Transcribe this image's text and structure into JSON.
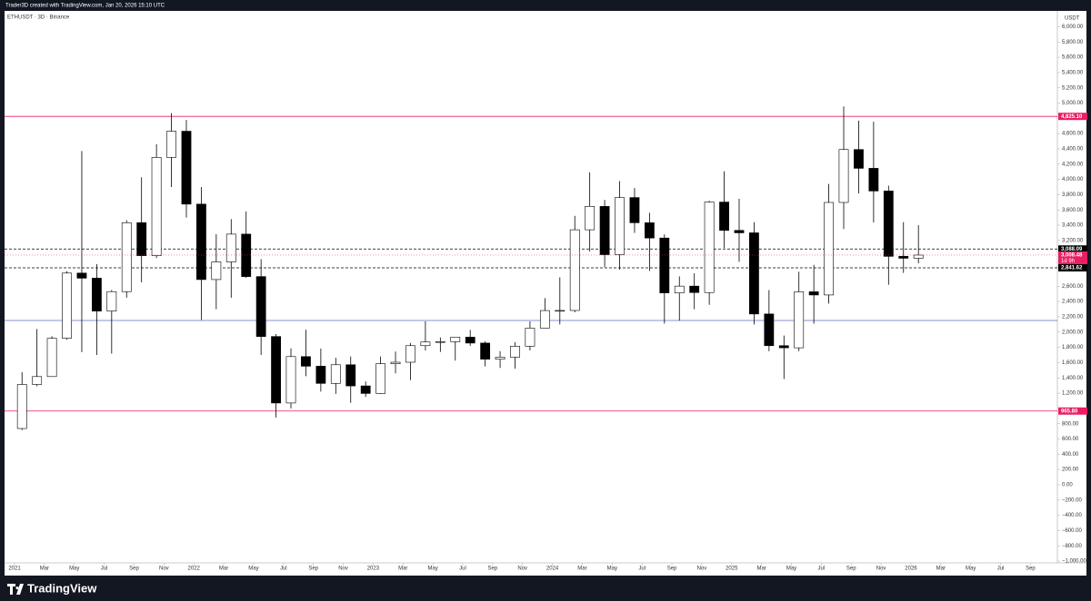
{
  "header": "Trader3D created with TradingView.com, Jan 20, 2026 15:10 UTC",
  "brand": "TradingView",
  "chart_data": {
    "type": "candlestick",
    "title": "ETHUSDT · 3D · Binance",
    "currency": "USDT",
    "up_color": "#ffffff",
    "down_color": "#000000",
    "xlim": [
      -0.67,
      69.8
    ],
    "ylim": [
      -1023,
      6207
    ],
    "xticks": [
      {
        "value": 0,
        "label": "2021"
      },
      {
        "value": 2,
        "label": "Mar"
      },
      {
        "value": 4,
        "label": "May"
      },
      {
        "value": 6,
        "label": "Jul"
      },
      {
        "value": 8,
        "label": "Sep"
      },
      {
        "value": 10,
        "label": "Nov"
      },
      {
        "value": 12,
        "label": "2022"
      },
      {
        "value": 14,
        "label": "Mar"
      },
      {
        "value": 16,
        "label": "May"
      },
      {
        "value": 18,
        "label": "Jul"
      },
      {
        "value": 20,
        "label": "Sep"
      },
      {
        "value": 22,
        "label": "Nov"
      },
      {
        "value": 24,
        "label": "2023"
      },
      {
        "value": 26,
        "label": "Mar"
      },
      {
        "value": 28,
        "label": "May"
      },
      {
        "value": 30,
        "label": "Jul"
      },
      {
        "value": 32,
        "label": "Sep"
      },
      {
        "value": 34,
        "label": "Nov"
      },
      {
        "value": 36,
        "label": "2024"
      },
      {
        "value": 38,
        "label": "Mar"
      },
      {
        "value": 40,
        "label": "May"
      },
      {
        "value": 42,
        "label": "Jul"
      },
      {
        "value": 44,
        "label": "Sep"
      },
      {
        "value": 46,
        "label": "Nov"
      },
      {
        "value": 48,
        "label": "2025"
      },
      {
        "value": 50,
        "label": "Mar"
      },
      {
        "value": 52,
        "label": "May"
      },
      {
        "value": 54,
        "label": "Jul"
      },
      {
        "value": 56,
        "label": "Sep"
      },
      {
        "value": 58,
        "label": "Nov"
      },
      {
        "value": 60,
        "label": "2026"
      },
      {
        "value": 62,
        "label": "Mar"
      },
      {
        "value": 64,
        "label": "May"
      },
      {
        "value": 66,
        "label": "Jul"
      },
      {
        "value": 68,
        "label": "Sep"
      }
    ],
    "yticks": [
      {
        "value": 6000,
        "label": "6,000.00"
      },
      {
        "value": 5800,
        "label": "5,800.00"
      },
      {
        "value": 5600,
        "label": "5,600.00"
      },
      {
        "value": 5400,
        "label": "5,400.00"
      },
      {
        "value": 5200,
        "label": "5,200.00"
      },
      {
        "value": 5000,
        "label": "5,000.00"
      },
      {
        "value": 4600,
        "label": "4,600.00"
      },
      {
        "value": 4400,
        "label": "4,400.00"
      },
      {
        "value": 4200,
        "label": "4,200.00"
      },
      {
        "value": 4000,
        "label": "4,000.00"
      },
      {
        "value": 3800,
        "label": "3,800.00"
      },
      {
        "value": 3600,
        "label": "3,600.00"
      },
      {
        "value": 3400,
        "label": "3,400.00"
      },
      {
        "value": 3200,
        "label": "3,200.00"
      },
      {
        "value": 2600,
        "label": "2,600.00"
      },
      {
        "value": 2400,
        "label": "2,400.00"
      },
      {
        "value": 2200,
        "label": "2,200.00"
      },
      {
        "value": 2000,
        "label": "2,000.00"
      },
      {
        "value": 1800,
        "label": "1,800.00"
      },
      {
        "value": 1600,
        "label": "1,600.00"
      },
      {
        "value": 1400,
        "label": "1,400.00"
      },
      {
        "value": 1200,
        "label": "1,200.00"
      },
      {
        "value": 800,
        "label": "800.00"
      },
      {
        "value": 600,
        "label": "600.00"
      },
      {
        "value": 400,
        "label": "400.00"
      },
      {
        "value": 200,
        "label": "200.00"
      },
      {
        "value": 0,
        "label": "0.00"
      },
      {
        "value": -200,
        "label": "−200.00"
      },
      {
        "value": -400,
        "label": "−400.00"
      },
      {
        "value": -600,
        "label": "−600.00"
      },
      {
        "value": -800,
        "label": "−800.00"
      },
      {
        "value": -1000,
        "label": "−1,000.00"
      }
    ],
    "levels": [
      {
        "value": 4825.1,
        "label": "4,825.10",
        "color": "#e91e63",
        "style": "solid"
      },
      {
        "value": 3088.09,
        "label": "3,088.09",
        "color": "#000000",
        "style": "dashed"
      },
      {
        "value": 2841.62,
        "label": "2,841.62",
        "color": "#000000",
        "style": "dashed"
      },
      {
        "value": 2152,
        "color": "#5c6bc0",
        "style": "solid"
      },
      {
        "value": 965.8,
        "label": "965.80",
        "color": "#e91e63",
        "style": "solid"
      }
    ],
    "last_price": {
      "value": 3008.48,
      "label": "3,008.48",
      "countdown": "1d 9h",
      "color": "#e91e63"
    },
    "candles": {
      "x": [
        "2021-01",
        "2021-02",
        "2021-03",
        "2021-04",
        "2021-05",
        "2021-06",
        "2021-07",
        "2021-08",
        "2021-09",
        "2021-10",
        "2021-11",
        "2021-12",
        "2022-01",
        "2022-02",
        "2022-03",
        "2022-04",
        "2022-05",
        "2022-06",
        "2022-07",
        "2022-08",
        "2022-09",
        "2022-10",
        "2022-11",
        "2022-12",
        "2023-01",
        "2023-02",
        "2023-03",
        "2023-04",
        "2023-05",
        "2023-06",
        "2023-07",
        "2023-08",
        "2023-09",
        "2023-10",
        "2023-11",
        "2023-12",
        "2024-01",
        "2024-02",
        "2024-03",
        "2024-04",
        "2024-05",
        "2024-06",
        "2024-07",
        "2024-08",
        "2024-09",
        "2024-10",
        "2024-11",
        "2024-12",
        "2025-01",
        "2025-02",
        "2025-03",
        "2025-04",
        "2025-05",
        "2025-06",
        "2025-07",
        "2025-08",
        "2025-09",
        "2025-10",
        "2025-11",
        "2025-12",
        "2026-01"
      ],
      "open": [
        737,
        1314,
        1417,
        1919,
        2773,
        2706,
        2275,
        2530,
        3433,
        3001,
        4288,
        4631,
        3676,
        2688,
        2919,
        3283,
        2727,
        1942,
        1071,
        1679,
        1553,
        1328,
        1572,
        1295,
        1196,
        1585,
        1605,
        1822,
        1870,
        1874,
        1934,
        1856,
        1645,
        1671,
        1815,
        2052,
        2282,
        2283,
        3340,
        3646,
        3014,
        3762,
        3432,
        3232,
        2513,
        2602,
        2518,
        3703,
        3332,
        3300,
        2237,
        1822,
        1794,
        2528,
        2486,
        3698,
        4391,
        4145,
        3848,
        2992,
        2967
      ],
      "high": [
        1475,
        2040,
        1945,
        2797,
        4372,
        2891,
        2551,
        3466,
        4027,
        4460,
        4868,
        4778,
        3900,
        3282,
        3479,
        3580,
        2955,
        1974,
        1786,
        2030,
        1785,
        1664,
        1680,
        1353,
        1680,
        1744,
        1857,
        2142,
        1930,
        1935,
        2029,
        1880,
        1750,
        1866,
        2140,
        2445,
        2717,
        3522,
        4093,
        3730,
        3977,
        3887,
        3563,
        3280,
        2730,
        2770,
        3720,
        4107,
        3745,
        3440,
        2550,
        1955,
        2790,
        2880,
        3940,
        4955,
        4770,
        4755,
        3918,
        3440,
        3400
      ],
      "low": [
        715,
        1290,
        1550,
        1900,
        1737,
        1700,
        1718,
        2450,
        2652,
        2970,
        3900,
        3500,
        2159,
        2300,
        2450,
        2711,
        1700,
        881,
        1000,
        1422,
        1220,
        1190,
        1073,
        1150,
        1190,
        1460,
        1370,
        1760,
        1740,
        1626,
        1820,
        1550,
        1530,
        1520,
        1760,
        2050,
        2100,
        2260,
        3055,
        2850,
        2816,
        3300,
        2800,
        2111,
        2150,
        2300,
        2357,
        3100,
        2920,
        2100,
        1750,
        1385,
        1750,
        2110,
        2373,
        3350,
        3815,
        3435,
        2620,
        2775,
        2900
      ],
      "close": [
        1314,
        1417,
        1919,
        2773,
        2706,
        2275,
        2530,
        3433,
        3001,
        4288,
        4631,
        3676,
        2688,
        2919,
        3283,
        2727,
        1942,
        1071,
        1679,
        1553,
        1328,
        1572,
        1295,
        1196,
        1585,
        1605,
        1822,
        1870,
        1874,
        1934,
        1856,
        1645,
        1671,
        1815,
        2052,
        2282,
        2283,
        3340,
        3646,
        3014,
        3762,
        3432,
        3232,
        2513,
        2602,
        2518,
        3703,
        3332,
        3300,
        2237,
        1822,
        1794,
        2528,
        2486,
        3698,
        4391,
        4145,
        3848,
        2992,
        2967,
        3008.48
      ]
    }
  }
}
